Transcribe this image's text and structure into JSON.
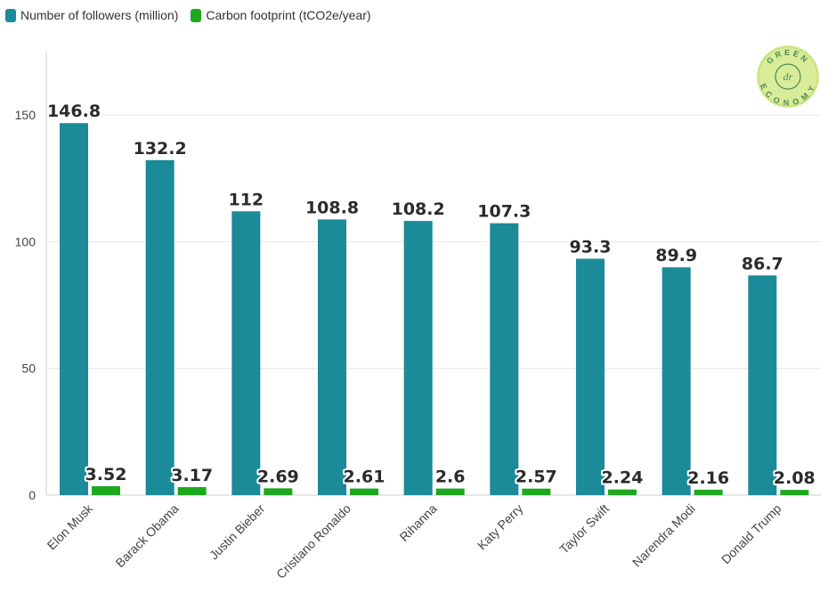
{
  "chart_data": {
    "type": "bar",
    "categories": [
      "Elon Musk",
      "Barack Obama",
      "Justin Bieber",
      "Cristiano Ronaldo",
      "Rihanna",
      "Katy Perry",
      "Taylor Swift",
      "Narendra Modi",
      "Donald Trump"
    ],
    "series": [
      {
        "name": "Number of followers (million)",
        "color": "#1b8a99",
        "values": [
          146.8,
          132.2,
          112,
          108.8,
          108.2,
          107.3,
          93.3,
          89.9,
          86.7
        ]
      },
      {
        "name": "Carbon footprint (tCO2e/year)",
        "color": "#1ea81e",
        "values": [
          3.52,
          3.17,
          2.69,
          2.61,
          2.6,
          2.57,
          2.24,
          2.16,
          2.08
        ]
      }
    ],
    "yticks": [
      0,
      50,
      100,
      150
    ],
    "ylim": [
      0,
      175
    ],
    "grid": true,
    "legend_position": "top-left"
  },
  "logo": {
    "top_text": "GREEN",
    "monogram": "dr",
    "bottom_text": "ECONOMY",
    "fill_color": "#d8ec9a",
    "ring_color": "#c4e07e",
    "text_color": "#4e8a56"
  }
}
